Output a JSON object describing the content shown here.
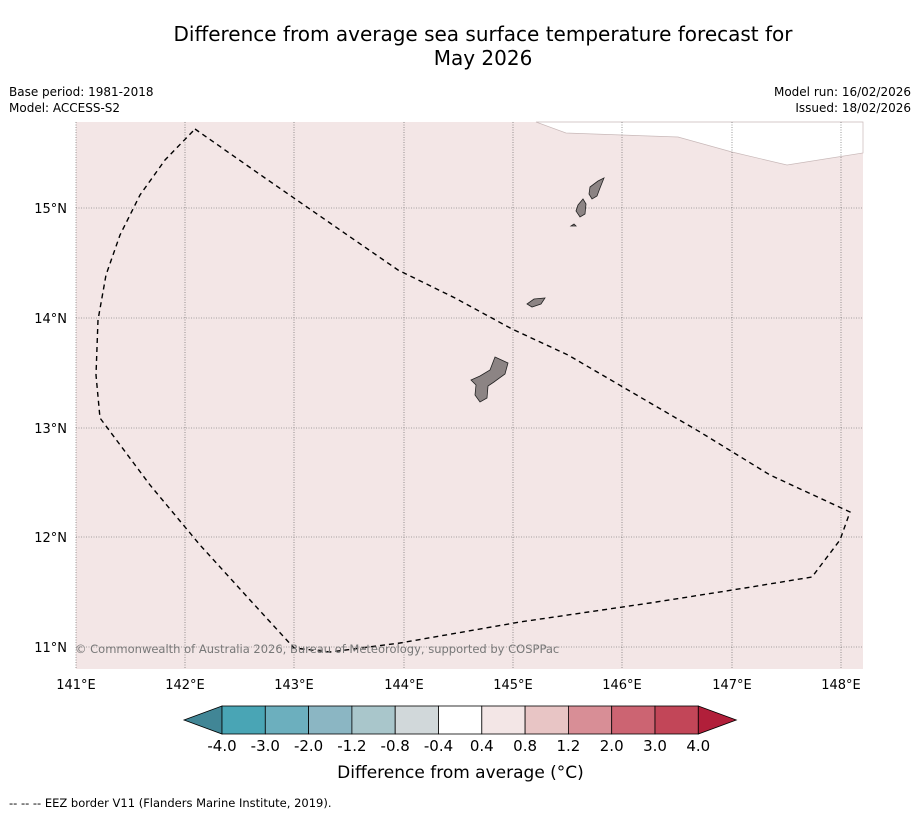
{
  "title_line1": "Difference from average sea surface temperature forecast for",
  "title_line2": "May 2026",
  "meta_left": {
    "base_period": "Base period: 1981-2018",
    "model": "Model: ACCESS-S2"
  },
  "meta_right": {
    "model_run": "Model run: 16/02/2026",
    "issued": "Issued: 18/02/2026"
  },
  "map": {
    "lon_labels": [
      "141°E",
      "142°E",
      "143°E",
      "144°E",
      "145°E",
      "146°E",
      "147°E",
      "148°E"
    ],
    "lat_labels": [
      "15°N",
      "14°N",
      "13°N",
      "12°N",
      "11°N"
    ],
    "copyright": "© Commonwealth of Australia 2026, Bureau of Meteorology, supported by COSPPac",
    "anomaly_fill": "#f3e6e6",
    "land_fill": "#8c8484",
    "eez_name": "EEZ border"
  },
  "colorbar": {
    "ticks": [
      "-4.0",
      "-3.0",
      "-2.0",
      "-1.2",
      "-0.8",
      "-0.4",
      "0.4",
      "0.8",
      "1.2",
      "2.0",
      "3.0",
      "4.0"
    ],
    "colors": [
      "#418696",
      "#49a5b5",
      "#6cafbe",
      "#8bb6c3",
      "#a9c6cb",
      "#d1d8da",
      "#ffffff",
      "#f3e6e6",
      "#e8c5c5",
      "#d88e96",
      "#cc6472",
      "#c24658",
      "#b11f3a"
    ],
    "label": "Difference from average (°C)"
  },
  "footer": "--  --  -- EEZ border V11 (Flanders Marine Institute, 2019)."
}
